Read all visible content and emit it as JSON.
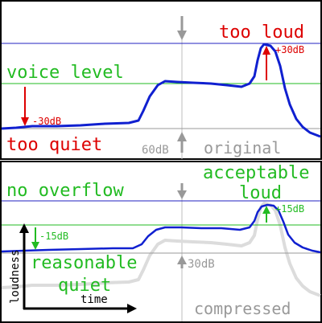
{
  "colors": {
    "frame": "#000000",
    "signal": "#1020d0",
    "ghost": "#dcdcdc",
    "limit_line": "#2020c0",
    "voice_line": "#22bb22",
    "green_text": "#22bb22",
    "red": "#dd0000",
    "gray": "#999999",
    "midline": "#bdbdbd"
  },
  "top_panel": {
    "too_loud": "too loud",
    "voice_level": "voice level",
    "too_quiet": "too quiet",
    "minus30": "-30dB",
    "plus30": "+30dB",
    "range_60": "60dB",
    "original": "original"
  },
  "bottom_panel": {
    "acceptable_1": "acceptable",
    "acceptable_2": "loud",
    "no_overflow": "no overflow",
    "reasonable_1": "reasonable",
    "reasonable_2": "quiet",
    "minus15": "-15dB",
    "plus15": "+15dB",
    "range_30": "30dB",
    "compressed": "compressed",
    "axis_y": "loudness",
    "axis_x": "time"
  }
}
